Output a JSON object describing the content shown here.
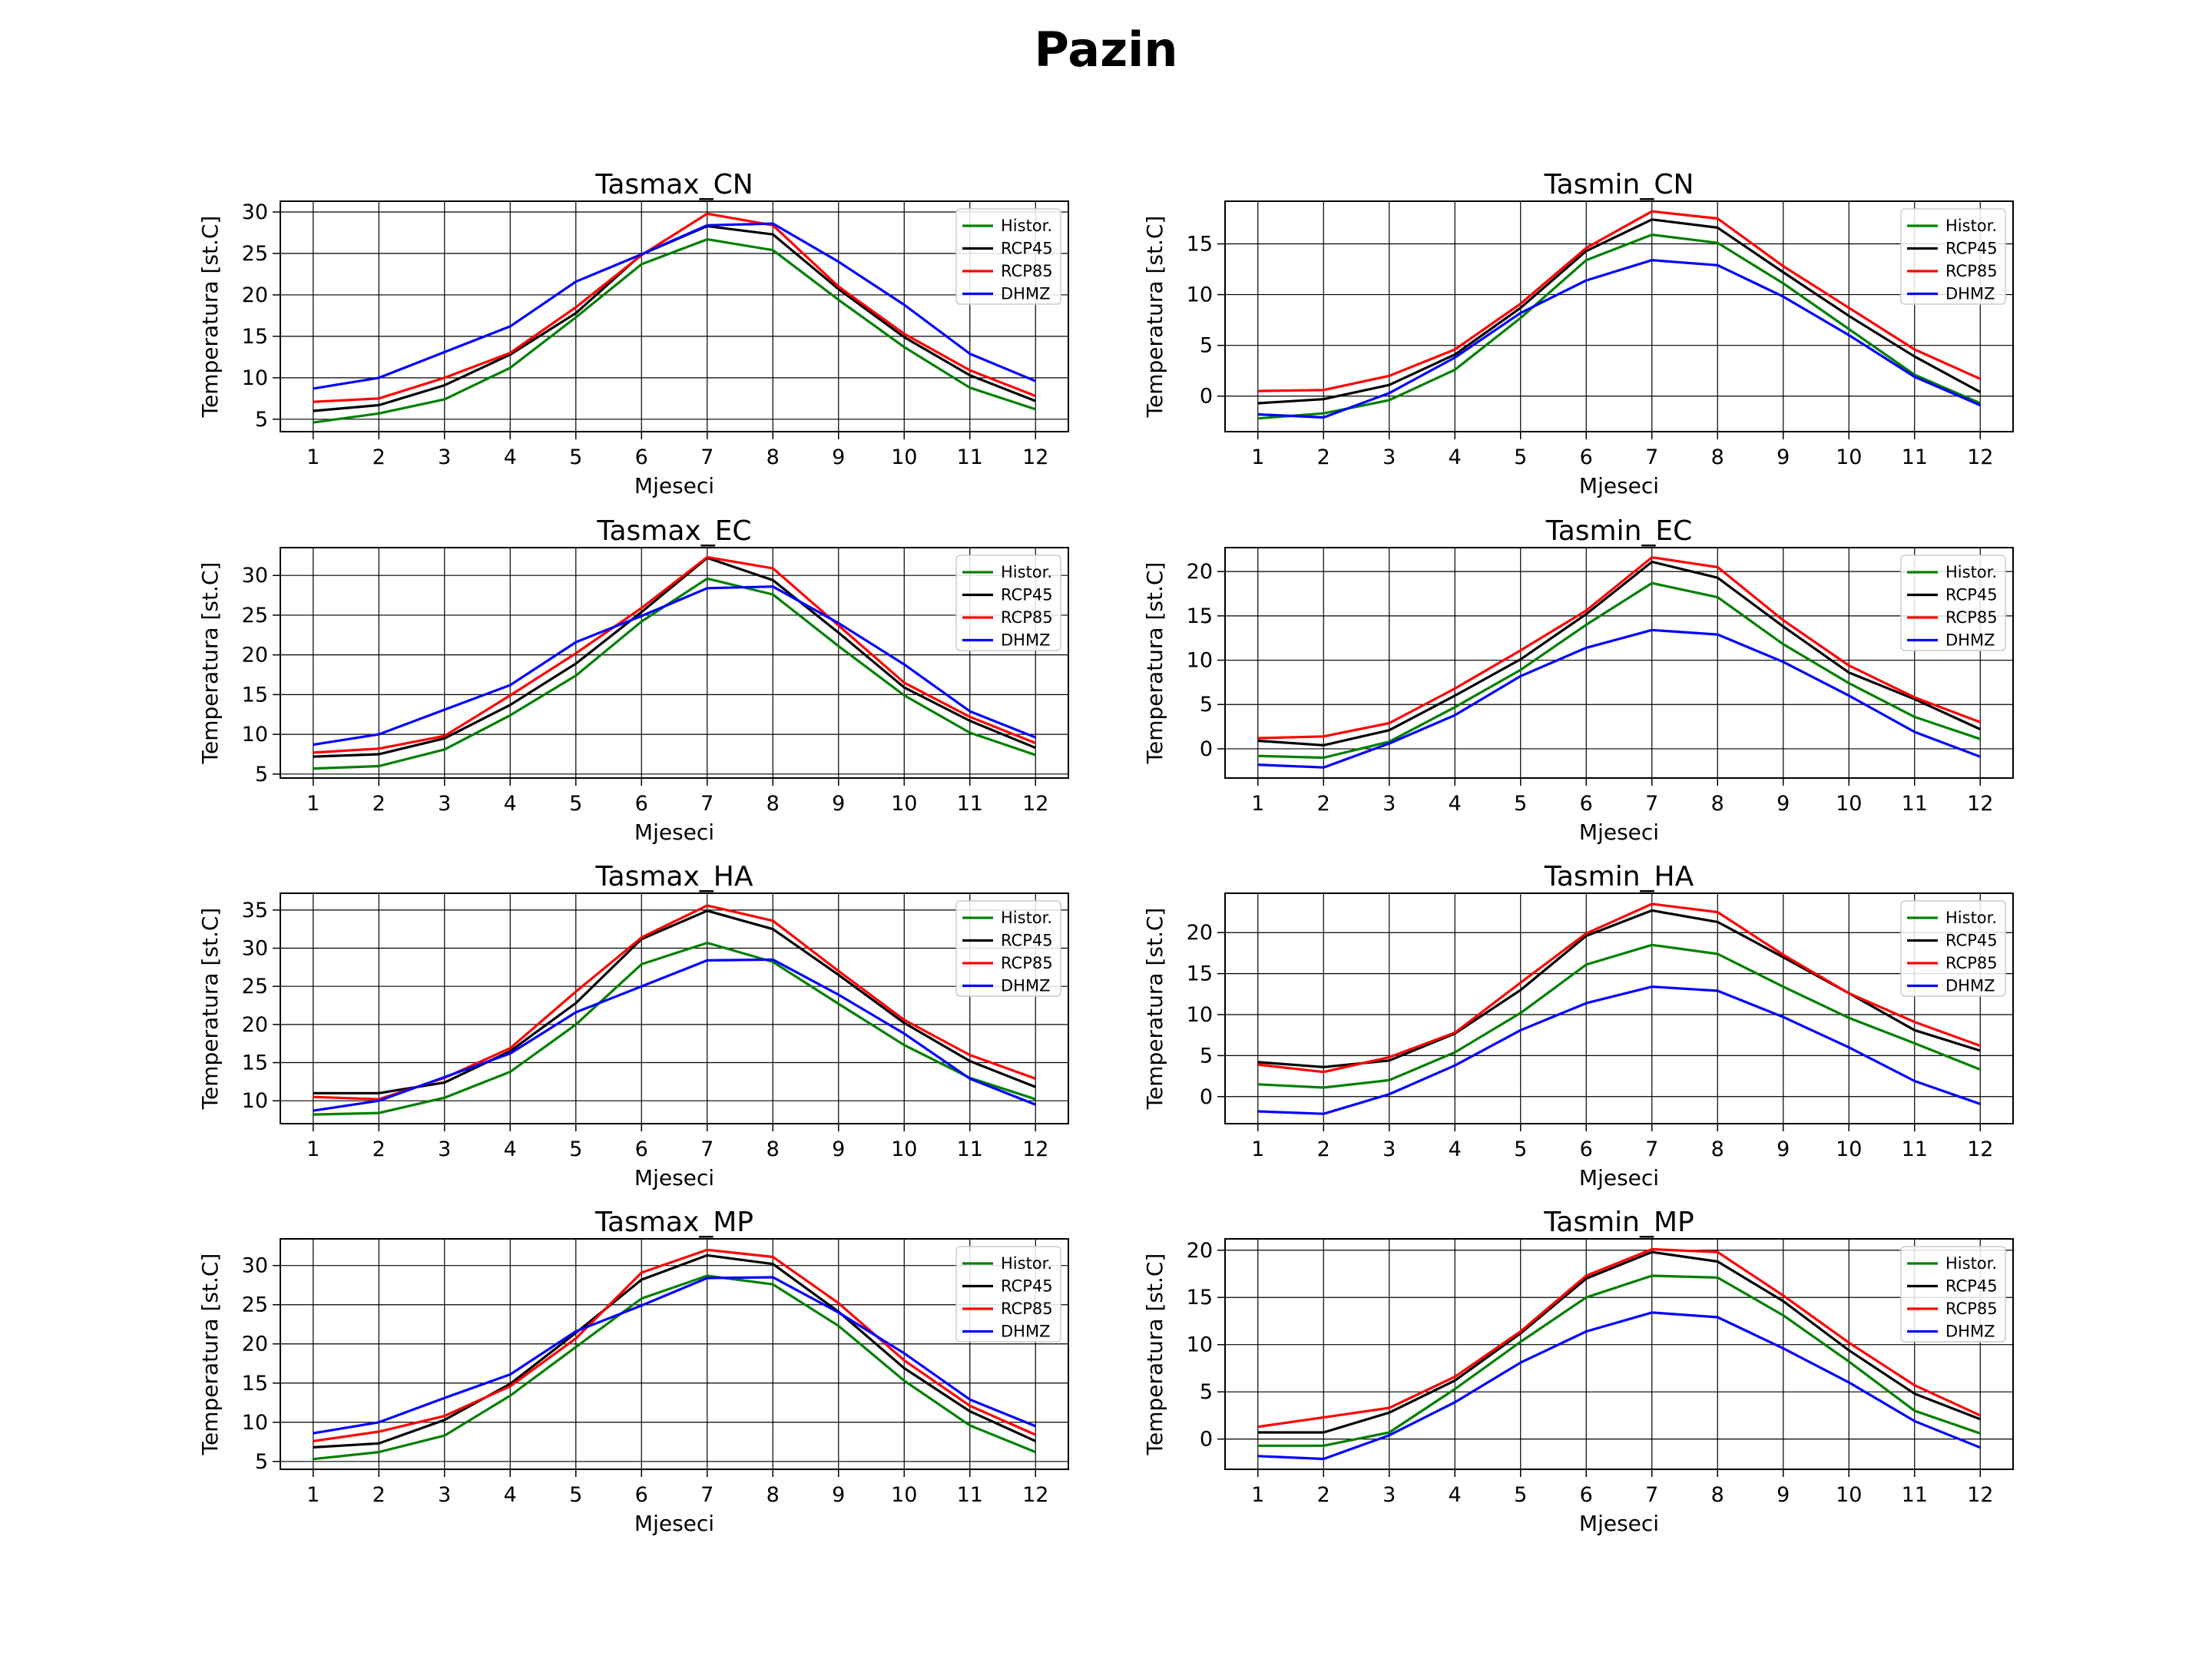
{
  "title": "Pazin",
  "chart_data": [
    {
      "type": "line",
      "title": "Tasmax_CN",
      "xlabel": "Mjeseci",
      "ylabel": "Temperatura [st.C]",
      "x": [
        1,
        2,
        3,
        4,
        5,
        6,
        7,
        8,
        9,
        10,
        11,
        12
      ],
      "xlim": [
        0.5,
        12.5
      ],
      "ylim": [
        3.5,
        31.3
      ],
      "yticks": [
        5,
        10,
        15,
        20,
        25,
        30
      ],
      "grid": true,
      "legend": "upper right",
      "series": [
        {
          "name": "Histor.",
          "color": "#008000",
          "values": [
            4.6,
            5.7,
            7.4,
            11.2,
            17.3,
            23.7,
            26.7,
            25.4,
            19.4,
            13.7,
            8.8,
            6.2
          ]
        },
        {
          "name": "RCP45",
          "color": "#000000",
          "values": [
            6.0,
            6.7,
            9.1,
            12.8,
            17.8,
            24.9,
            28.3,
            27.3,
            20.7,
            14.9,
            10.3,
            7.2
          ]
        },
        {
          "name": "RCP85",
          "color": "#ff0000",
          "values": [
            7.1,
            7.5,
            10.0,
            13.0,
            18.5,
            24.8,
            29.8,
            28.4,
            21.0,
            15.3,
            10.9,
            7.8
          ]
        },
        {
          "name": "DHMZ",
          "color": "#0000ff",
          "values": [
            8.7,
            10.0,
            13.1,
            16.2,
            21.6,
            24.9,
            28.4,
            28.6,
            24.0,
            18.8,
            12.9,
            9.6
          ]
        }
      ]
    },
    {
      "type": "line",
      "title": "Tasmin_CN",
      "xlabel": "Mjeseci",
      "ylabel": "Temperatura [st.C]",
      "x": [
        1,
        2,
        3,
        4,
        5,
        6,
        7,
        8,
        9,
        10,
        11,
        12
      ],
      "xlim": [
        0.5,
        12.5
      ],
      "ylim": [
        -3.5,
        19.2
      ],
      "yticks": [
        0,
        5,
        10,
        15
      ],
      "grid": true,
      "legend": "upper right",
      "series": [
        {
          "name": "Histor.",
          "color": "#008000",
          "values": [
            -2.2,
            -1.7,
            -0.4,
            2.6,
            7.7,
            13.4,
            15.9,
            15.1,
            11.1,
            6.6,
            2.1,
            -0.7
          ]
        },
        {
          "name": "RCP45",
          "color": "#000000",
          "values": [
            -0.7,
            -0.3,
            1.1,
            4.1,
            8.7,
            14.3,
            17.4,
            16.6,
            12.2,
            7.9,
            3.9,
            0.4
          ]
        },
        {
          "name": "RCP85",
          "color": "#ff0000",
          "values": [
            0.5,
            0.6,
            2.0,
            4.6,
            9.1,
            14.6,
            18.2,
            17.5,
            12.8,
            8.7,
            4.6,
            1.7
          ]
        },
        {
          "name": "DHMZ",
          "color": "#0000ff",
          "values": [
            -1.8,
            -2.1,
            0.3,
            3.8,
            8.2,
            11.4,
            13.4,
            12.9,
            9.8,
            6.0,
            1.9,
            -0.9
          ]
        }
      ]
    },
    {
      "type": "line",
      "title": "Tasmax_EC",
      "xlabel": "Mjeseci",
      "ylabel": "Temperatura [st.C]",
      "x": [
        1,
        2,
        3,
        4,
        5,
        6,
        7,
        8,
        9,
        10,
        11,
        12
      ],
      "xlim": [
        0.5,
        12.5
      ],
      "ylim": [
        4.5,
        33.5
      ],
      "yticks": [
        5,
        10,
        15,
        20,
        25,
        30
      ],
      "grid": true,
      "legend": "upper right",
      "series": [
        {
          "name": "Histor.",
          "color": "#008000",
          "values": [
            5.7,
            6.0,
            8.1,
            12.4,
            17.4,
            24.2,
            29.6,
            27.6,
            21.1,
            14.9,
            10.2,
            7.4
          ]
        },
        {
          "name": "RCP45",
          "color": "#000000",
          "values": [
            7.2,
            7.5,
            9.5,
            13.7,
            18.9,
            25.4,
            32.2,
            29.4,
            22.8,
            15.9,
            11.7,
            8.3
          ]
        },
        {
          "name": "RCP85",
          "color": "#ff0000",
          "values": [
            7.7,
            8.2,
            9.8,
            14.9,
            20.2,
            25.9,
            32.3,
            30.9,
            23.7,
            16.5,
            12.2,
            8.9
          ]
        },
        {
          "name": "DHMZ",
          "color": "#0000ff",
          "values": [
            8.7,
            10.0,
            13.1,
            16.2,
            21.6,
            24.9,
            28.4,
            28.6,
            24.0,
            18.8,
            12.9,
            9.6
          ]
        }
      ]
    },
    {
      "type": "line",
      "title": "Tasmin_EC",
      "xlabel": "Mjeseci",
      "ylabel": "Temperatura [st.C]",
      "x": [
        1,
        2,
        3,
        4,
        5,
        6,
        7,
        8,
        9,
        10,
        11,
        12
      ],
      "xlim": [
        0.5,
        12.5
      ],
      "ylim": [
        -3.3,
        22.7
      ],
      "yticks": [
        0,
        5,
        10,
        15,
        20
      ],
      "grid": true,
      "legend": "upper right",
      "series": [
        {
          "name": "Histor.",
          "color": "#008000",
          "values": [
            -0.8,
            -1.0,
            0.8,
            4.7,
            8.9,
            14.0,
            18.7,
            17.1,
            11.8,
            7.4,
            3.6,
            1.1
          ]
        },
        {
          "name": "RCP45",
          "color": "#000000",
          "values": [
            0.9,
            0.4,
            2.1,
            6.0,
            10.1,
            15.2,
            21.1,
            19.3,
            13.8,
            8.6,
            5.6,
            2.2
          ]
        },
        {
          "name": "RCP85",
          "color": "#ff0000",
          "values": [
            1.2,
            1.4,
            2.9,
            6.8,
            11.1,
            15.6,
            21.6,
            20.5,
            14.5,
            9.4,
            5.8,
            3.0
          ]
        },
        {
          "name": "DHMZ",
          "color": "#0000ff",
          "values": [
            -1.8,
            -2.1,
            0.6,
            3.8,
            8.2,
            11.4,
            13.4,
            12.9,
            9.8,
            6.0,
            1.9,
            -0.9
          ]
        }
      ]
    },
    {
      "type": "line",
      "title": "Tasmax_HA",
      "xlabel": "Mjeseci",
      "ylabel": "Temperatura [st.C]",
      "x": [
        1,
        2,
        3,
        4,
        5,
        6,
        7,
        8,
        9,
        10,
        11,
        12
      ],
      "xlim": [
        0.5,
        12.5
      ],
      "ylim": [
        7.0,
        37.2
      ],
      "yticks": [
        10,
        15,
        20,
        25,
        30,
        35
      ],
      "grid": true,
      "legend": "upper right",
      "series": [
        {
          "name": "Histor.",
          "color": "#008000",
          "values": [
            8.2,
            8.4,
            10.4,
            13.8,
            20.0,
            27.9,
            30.7,
            28.2,
            22.7,
            17.3,
            13.0,
            10.2
          ]
        },
        {
          "name": "RCP45",
          "color": "#000000",
          "values": [
            11.0,
            11.0,
            12.4,
            16.5,
            22.8,
            31.2,
            34.9,
            32.5,
            26.5,
            20.2,
            15.2,
            11.8
          ]
        },
        {
          "name": "RCP85",
          "color": "#ff0000",
          "values": [
            10.5,
            10.2,
            13.0,
            16.9,
            24.3,
            31.4,
            35.6,
            33.6,
            27.0,
            20.6,
            16.0,
            12.9
          ]
        },
        {
          "name": "DHMZ",
          "color": "#0000ff",
          "values": [
            8.7,
            10.0,
            13.1,
            16.2,
            21.6,
            25.0,
            28.4,
            28.5,
            23.9,
            18.8,
            12.9,
            9.5
          ]
        }
      ]
    },
    {
      "type": "line",
      "title": "Tasmin_HA",
      "xlabel": "Mjeseci",
      "ylabel": "Temperatura [st.C]",
      "x": [
        1,
        2,
        3,
        4,
        5,
        6,
        7,
        8,
        9,
        10,
        11,
        12
      ],
      "xlim": [
        0.5,
        12.5
      ],
      "ylim": [
        -3.3,
        24.8
      ],
      "yticks": [
        0,
        5,
        10,
        15,
        20
      ],
      "grid": true,
      "legend": "upper right",
      "series": [
        {
          "name": "Histor.",
          "color": "#008000",
          "values": [
            1.5,
            1.1,
            2.0,
            5.4,
            10.2,
            16.1,
            18.5,
            17.4,
            13.4,
            9.6,
            6.5,
            3.3
          ]
        },
        {
          "name": "RCP45",
          "color": "#000000",
          "values": [
            4.2,
            3.6,
            4.4,
            7.7,
            13.0,
            19.6,
            22.7,
            21.3,
            17.0,
            12.6,
            8.1,
            5.6
          ]
        },
        {
          "name": "RCP85",
          "color": "#ff0000",
          "values": [
            3.9,
            3.0,
            4.8,
            7.8,
            13.9,
            19.9,
            23.5,
            22.5,
            17.3,
            12.6,
            9.1,
            6.2
          ]
        },
        {
          "name": "DHMZ",
          "color": "#0000ff",
          "values": [
            -1.8,
            -2.1,
            0.3,
            3.8,
            8.1,
            11.4,
            13.4,
            12.9,
            9.7,
            6.0,
            1.9,
            -0.9
          ]
        }
      ]
    },
    {
      "type": "line",
      "title": "Tasmax_MP",
      "xlabel": "Mjeseci",
      "ylabel": "Temperatura [st.C]",
      "x": [
        1,
        2,
        3,
        4,
        5,
        6,
        7,
        8,
        9,
        10,
        11,
        12
      ],
      "xlim": [
        0.5,
        12.5
      ],
      "ylim": [
        4.0,
        33.4
      ],
      "yticks": [
        5,
        10,
        15,
        20,
        25,
        30
      ],
      "grid": true,
      "legend": "upper right",
      "series": [
        {
          "name": "Histor.",
          "color": "#008000",
          "values": [
            5.3,
            6.2,
            8.3,
            13.4,
            19.6,
            25.8,
            28.7,
            27.6,
            22.3,
            15.3,
            9.6,
            6.2
          ]
        },
        {
          "name": "RCP45",
          "color": "#000000",
          "values": [
            6.8,
            7.3,
            10.3,
            14.9,
            21.4,
            28.2,
            31.3,
            30.2,
            24.1,
            16.9,
            11.4,
            7.6
          ]
        },
        {
          "name": "RCP85",
          "color": "#ff0000",
          "values": [
            7.6,
            8.8,
            10.8,
            14.6,
            20.7,
            29.1,
            32.0,
            31.1,
            25.2,
            17.9,
            12.1,
            8.4
          ]
        },
        {
          "name": "DHMZ",
          "color": "#0000ff",
          "values": [
            8.6,
            10.0,
            13.1,
            16.1,
            21.6,
            24.9,
            28.4,
            28.5,
            24.0,
            18.8,
            12.9,
            9.5
          ]
        }
      ]
    },
    {
      "type": "line",
      "title": "Tasmin_MP",
      "xlabel": "Mjeseci",
      "ylabel": "Temperatura [st.C]",
      "x": [
        1,
        2,
        3,
        4,
        5,
        6,
        7,
        8,
        9,
        10,
        11,
        12
      ],
      "xlim": [
        0.5,
        12.5
      ],
      "ylim": [
        -3.2,
        21.2
      ],
      "yticks": [
        0,
        5,
        10,
        15,
        20
      ],
      "grid": true,
      "legend": "upper right",
      "series": [
        {
          "name": "Histor.",
          "color": "#008000",
          "values": [
            -0.7,
            -0.7,
            0.7,
            5.3,
            10.3,
            15.0,
            17.3,
            17.1,
            13.1,
            8.2,
            3.0,
            0.6
          ]
        },
        {
          "name": "RCP45",
          "color": "#000000",
          "values": [
            0.7,
            0.7,
            2.8,
            6.2,
            11.2,
            17.0,
            19.8,
            18.8,
            14.6,
            9.4,
            4.8,
            2.1
          ]
        },
        {
          "name": "RCP85",
          "color": "#ff0000",
          "values": [
            1.3,
            2.3,
            3.3,
            6.6,
            11.4,
            17.3,
            20.1,
            19.8,
            15.2,
            10.2,
            5.7,
            2.5
          ]
        },
        {
          "name": "DHMZ",
          "color": "#0000ff",
          "values": [
            -1.8,
            -2.1,
            0.4,
            3.9,
            8.1,
            11.4,
            13.4,
            12.9,
            9.6,
            6.0,
            1.9,
            -0.9
          ]
        }
      ]
    }
  ]
}
